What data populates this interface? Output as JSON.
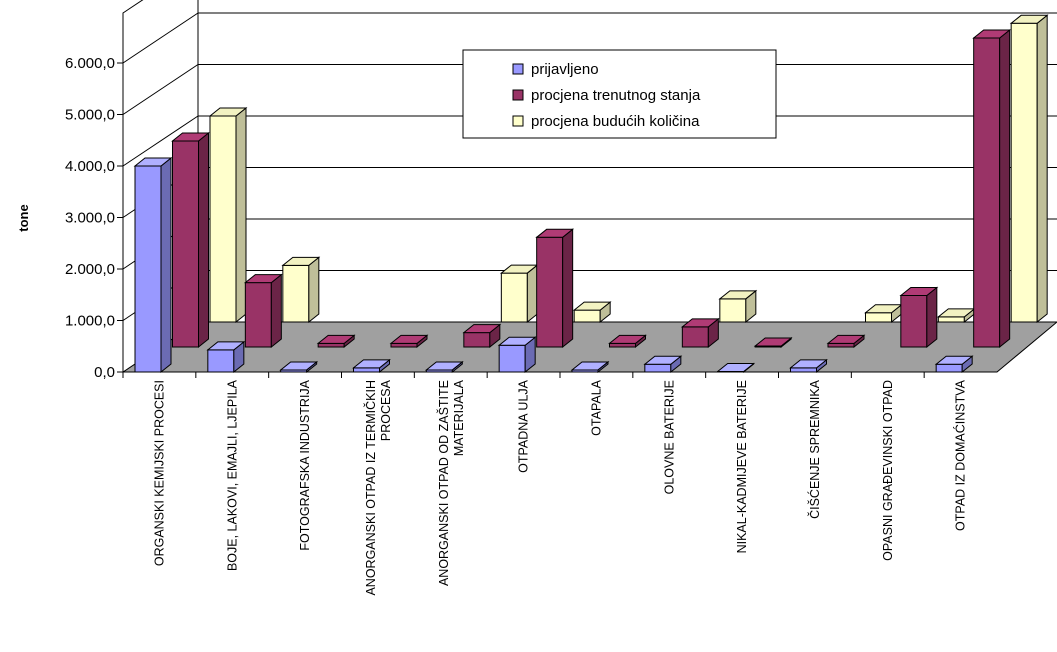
{
  "chart_data": {
    "type": "bar",
    "variant": "3d-clustered",
    "title": "",
    "xlabel": "",
    "ylabel": "tone",
    "ylim": [
      0,
      6000
    ],
    "yticks": [
      "0,0",
      "1.000,0",
      "2.000,0",
      "3.000,0",
      "4.000,0",
      "5.000,0",
      "6.000,0"
    ],
    "grid": true,
    "legend_position": "top-right",
    "categories": [
      "ORGANSKI KEMIJSKI PROCESI",
      "BOJE, LAKOVI, EMAJLI, LJEPILA",
      "FOTOGRAFSKA INDUSTRIJA",
      "ANORGANSKI OTPAD IZ TERMIČKIH PROCESA",
      "ANORGANSKI OTPAD OD ZAŠTITE MATERIJALA",
      "OTPADNA ULJA",
      "OTAPALA",
      "OLOVNE BATERIJE",
      "NIKAL-KADMIJEVE BATERIJE",
      "ČIŠĆENJE SPREMNIKA",
      "OPASNI GRAĐEVINSKI OTPAD",
      "OTPAD IZ DOMAĆINSTVA"
    ],
    "category_lines": [
      [
        "ORGANSKI KEMIJSKI PROCESI"
      ],
      [
        "BOJE, LAKOVI, EMAJLI, LJEPILA"
      ],
      [
        "FOTOGRAFSKA INDUSTRIJA"
      ],
      [
        "ANORGANSKI OTPAD IZ TERMIČKIH",
        "PROCESA"
      ],
      [
        "ANORGANSKI OTPAD OD ZAŠTITE",
        "MATERIJALA"
      ],
      [
        "OTPADNA ULJA"
      ],
      [
        "OTAPALA"
      ],
      [
        "OLOVNE BATERIJE"
      ],
      [
        "NIKAL-KADMIJEVE BATERIJE"
      ],
      [
        "ČIŠĆENJE SPREMNIKA"
      ],
      [
        "OPASNI GRAĐEVINSKI OTPAD"
      ],
      [
        "OTPAD IZ DOMAĆINSTVA"
      ]
    ],
    "series": [
      {
        "name": "prijavljeno",
        "color": "#9999ff",
        "values": [
          4000,
          430,
          40,
          80,
          40,
          520,
          40,
          150,
          10,
          80,
          0,
          150
        ]
      },
      {
        "name": "procjena trenutnog stanja",
        "color": "#993366",
        "values": [
          4000,
          1250,
          70,
          70,
          280,
          2130,
          70,
          390,
          20,
          70,
          1000,
          6000
        ]
      },
      {
        "name": "procjena budućih količina",
        "color": "#ffffcc",
        "values": [
          4000,
          1100,
          0,
          0,
          950,
          230,
          0,
          450,
          0,
          180,
          100,
          5800
        ]
      }
    ]
  }
}
